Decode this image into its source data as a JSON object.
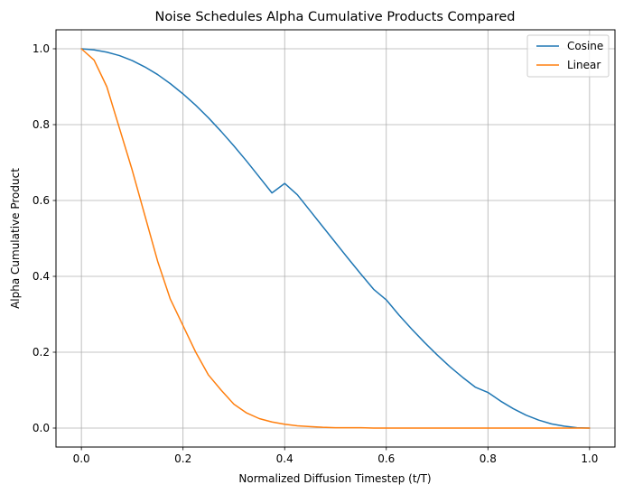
{
  "chart_data": {
    "type": "line",
    "title": "Noise Schedules Alpha Cumulative Products Compared",
    "xlabel": "Normalized Diffusion Timestep (t/T)",
    "ylabel": "Alpha Cumulative Product",
    "xlim": [
      -0.05,
      1.05
    ],
    "ylim": [
      -0.05,
      1.05
    ],
    "xticks": [
      0.0,
      0.2,
      0.4,
      0.6,
      0.8,
      1.0
    ],
    "xtick_labels": [
      "0.0",
      "0.2",
      "0.4",
      "0.6",
      "0.8",
      "1.0"
    ],
    "yticks": [
      0.0,
      0.2,
      0.4,
      0.6,
      0.8,
      1.0
    ],
    "ytick_labels": [
      "0.0",
      "0.2",
      "0.4",
      "0.6",
      "0.8",
      "1.0"
    ],
    "grid": true,
    "legend_position": "top-right",
    "x": [
      0.0,
      0.025,
      0.05,
      0.075,
      0.1,
      0.125,
      0.15,
      0.175,
      0.2,
      0.225,
      0.25,
      0.275,
      0.3,
      0.325,
      0.35,
      0.375,
      0.4,
      0.425,
      0.45,
      0.475,
      0.5,
      0.525,
      0.55,
      0.575,
      0.6,
      0.625,
      0.65,
      0.675,
      0.7,
      0.725,
      0.75,
      0.775,
      0.8,
      0.825,
      0.85,
      0.875,
      0.9,
      0.925,
      0.95,
      0.975,
      1.0
    ],
    "series": [
      {
        "name": "Cosine",
        "color": "#1f77b4",
        "values": [
          1.0,
          0.997,
          0.991,
          0.982,
          0.969,
          0.952,
          0.932,
          0.908,
          0.881,
          0.851,
          0.818,
          0.782,
          0.744,
          0.704,
          0.662,
          0.62,
          0.645,
          0.615,
          0.573,
          0.531,
          0.489,
          0.447,
          0.406,
          0.366,
          0.338,
          0.298,
          0.261,
          0.226,
          0.193,
          0.162,
          0.134,
          0.108,
          0.094,
          0.071,
          0.051,
          0.034,
          0.021,
          0.011,
          0.005,
          0.001,
          0.0
        ]
      },
      {
        "name": "Linear",
        "color": "#ff7f0e",
        "values": [
          1.0,
          0.97,
          0.9,
          0.79,
          0.68,
          0.56,
          0.44,
          0.34,
          0.27,
          0.2,
          0.14,
          0.1,
          0.063,
          0.04,
          0.025,
          0.016,
          0.01,
          0.006,
          0.004,
          0.002,
          0.001,
          0.001,
          0.001,
          0.0,
          0.0,
          0.0,
          0.0,
          0.0,
          0.0,
          0.0,
          0.0,
          0.0,
          0.0,
          0.0,
          0.0,
          0.0,
          0.0,
          0.0,
          0.0,
          0.0,
          0.0
        ]
      }
    ]
  }
}
